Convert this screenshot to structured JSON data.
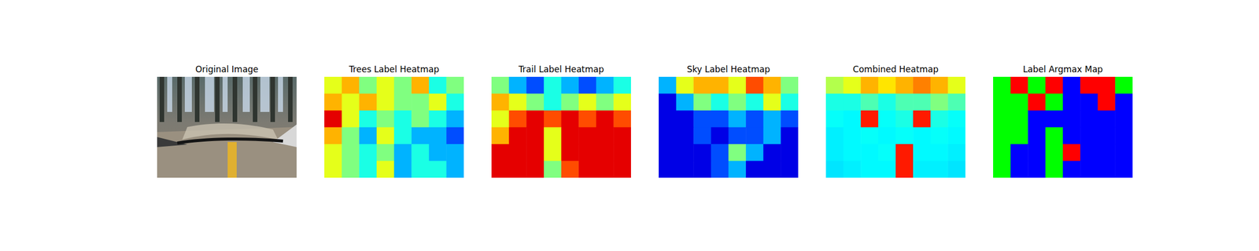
{
  "chart_data": [
    {
      "type": "image",
      "title": "Original Image",
      "tick_labels": false
    },
    {
      "type": "heatmap",
      "title": "Trees Label Heatmap",
      "tick_labels": false,
      "zlim": [
        0,
        1
      ],
      "values": [
        [
          0.6,
          0.7,
          0.5,
          0.6,
          0.5,
          0.7,
          0.4,
          0.5
        ],
        [
          0.7,
          0.6,
          0.7,
          0.6,
          0.5,
          0.5,
          0.6,
          0.4
        ],
        [
          0.9,
          0.6,
          0.4,
          0.5,
          0.4,
          0.5,
          0.4,
          0.3
        ],
        [
          0.7,
          0.5,
          0.3,
          0.6,
          0.4,
          0.3,
          0.3,
          0.2
        ],
        [
          0.6,
          0.5,
          0.4,
          0.5,
          0.3,
          0.4,
          0.3,
          0.3
        ],
        [
          0.6,
          0.5,
          0.4,
          0.6,
          0.3,
          0.4,
          0.4,
          0.3
        ]
      ]
    },
    {
      "type": "heatmap",
      "title": "Trail Label Heatmap",
      "tick_labels": false,
      "zlim": [
        0,
        1
      ],
      "values": [
        [
          0.5,
          0.3,
          0.2,
          0.4,
          0.3,
          0.2,
          0.3,
          0.4
        ],
        [
          0.7,
          0.6,
          0.5,
          0.4,
          0.5,
          0.6,
          0.5,
          0.6
        ],
        [
          0.6,
          0.8,
          0.9,
          0.8,
          0.9,
          0.8,
          0.9,
          0.8
        ],
        [
          0.7,
          0.9,
          0.9,
          0.6,
          0.9,
          0.9,
          0.9,
          0.9
        ],
        [
          0.9,
          0.9,
          0.9,
          0.6,
          0.9,
          0.9,
          0.9,
          0.9
        ],
        [
          0.9,
          0.9,
          0.9,
          0.5,
          0.8,
          0.9,
          0.9,
          0.9
        ]
      ]
    },
    {
      "type": "heatmap",
      "title": "Sky Label Heatmap",
      "tick_labels": false,
      "zlim": [
        0,
        1
      ],
      "values": [
        [
          0.3,
          0.6,
          0.7,
          0.7,
          0.6,
          0.8,
          0.7,
          0.5
        ],
        [
          0.1,
          0.3,
          0.5,
          0.4,
          0.5,
          0.4,
          0.6,
          0.4
        ],
        [
          0.1,
          0.1,
          0.2,
          0.2,
          0.3,
          0.2,
          0.3,
          0.2
        ],
        [
          0.1,
          0.1,
          0.2,
          0.1,
          0.2,
          0.2,
          0.3,
          0.1
        ],
        [
          0.1,
          0.1,
          0.1,
          0.2,
          0.5,
          0.3,
          0.1,
          0.1
        ],
        [
          0.1,
          0.1,
          0.1,
          0.2,
          0.3,
          0.1,
          0.1,
          0.1
        ]
      ]
    },
    {
      "type": "heatmap",
      "title": "Combined Heatmap",
      "tick_labels": false,
      "zlim": [
        0,
        1
      ],
      "values": [
        [
          0.55,
          0.6,
          0.7,
          0.65,
          0.7,
          0.75,
          0.7,
          0.6
        ],
        [
          0.4,
          0.4,
          0.45,
          0.4,
          0.45,
          0.45,
          0.5,
          0.45
        ],
        [
          0.38,
          0.37,
          0.85,
          0.38,
          0.4,
          0.85,
          0.4,
          0.38
        ],
        [
          0.36,
          0.37,
          0.38,
          0.37,
          0.38,
          0.37,
          0.38,
          0.37
        ],
        [
          0.36,
          0.37,
          0.37,
          0.38,
          0.85,
          0.37,
          0.37,
          0.36
        ],
        [
          0.35,
          0.36,
          0.37,
          0.37,
          0.85,
          0.36,
          0.36,
          0.35
        ]
      ]
    },
    {
      "type": "label_map",
      "title": "Label Argmax Map",
      "tick_labels": false,
      "colors": [
        "#00ff00",
        "#0000ff",
        "#ff0000"
      ],
      "values": [
        [
          0,
          2,
          0,
          2,
          1,
          2,
          2,
          0
        ],
        [
          0,
          0,
          2,
          0,
          1,
          1,
          2,
          1
        ],
        [
          0,
          0,
          1,
          1,
          1,
          1,
          1,
          1
        ],
        [
          0,
          0,
          1,
          0,
          1,
          1,
          1,
          1
        ],
        [
          0,
          1,
          1,
          0,
          2,
          1,
          1,
          1
        ],
        [
          0,
          1,
          1,
          0,
          1,
          1,
          1,
          1
        ]
      ]
    }
  ]
}
